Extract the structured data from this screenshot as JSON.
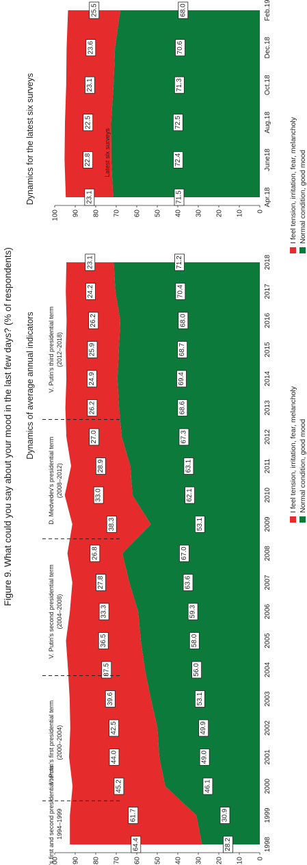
{
  "figure": {
    "title": "Figure 9. What could you say about your mood in the last few days? (% of respondents)",
    "colors": {
      "negative": "#e52b2b",
      "positive": "#0b7a3b"
    }
  },
  "legend": {
    "negative": "I feel tension, irritation, fear, melancholy",
    "positive": "Normal condition, good mood"
  },
  "chart_data": [
    {
      "type": "area",
      "subtitle": "Dynamics of average annual indicators",
      "x": [
        "1998",
        "1999",
        "2000",
        "2001",
        "2002",
        "2003",
        "2004",
        "2005",
        "2006",
        "2007",
        "2008",
        "2009",
        "2010",
        "2011",
        "2012",
        "2013",
        "2014",
        "2015",
        "2016",
        "2017",
        "2018"
      ],
      "ylim": [
        0,
        100
      ],
      "yticks": [
        0,
        10,
        20,
        30,
        40,
        50,
        60,
        70,
        80,
        90,
        100
      ],
      "series": [
        {
          "name": "Normal condition, good mood",
          "color": "#0b7a3b",
          "values": [
            28.2,
            30.9,
            46.1,
            49.0,
            49.9,
            53.1,
            56.0,
            58.0,
            59.3,
            63.6,
            67.0,
            53.1,
            62.1,
            63.1,
            67.3,
            68.6,
            69.4,
            68.7,
            68.0,
            70.4,
            71.2
          ]
        },
        {
          "name": "I feel tension, irritation, fear, melancholy",
          "color": "#e52b2b",
          "values": [
            64.4,
            61.7,
            45.2,
            44.0,
            42.5,
            39.6,
            37.5,
            36.5,
            33.3,
            27.8,
            26.8,
            38.3,
            33.0,
            28.9,
            27.0,
            26.2,
            24.9,
            25.9,
            26.2,
            24.2,
            23.1
          ]
        }
      ],
      "periods": [
        {
          "label": "Yeltsin's first and second presidential terms",
          "years": "1994–1999"
        },
        {
          "label": "V. Putin's first presidential term",
          "years": "(2000–2004)"
        },
        {
          "label": "V. Putin's second presidential term",
          "years": "(2004–2008)"
        },
        {
          "label": "D. Medvedev's presidential term",
          "years": "(2008–2012)"
        },
        {
          "label": "V. Putin's third presidential term",
          "years": "(2012–2018)"
        }
      ],
      "legend_position": "bottom"
    },
    {
      "type": "area",
      "subtitle": "Dynamics for the latest six surveys",
      "annotation": "Latest six surveys",
      "x": [
        "Apr.18",
        "June18",
        "Aug.18",
        "Oct.18",
        "Dec.18",
        "Feb.19"
      ],
      "ylim": [
        0,
        100
      ],
      "yticks": [
        0,
        10,
        20,
        30,
        40,
        50,
        60,
        70,
        80,
        90,
        100
      ],
      "series": [
        {
          "name": "Normal condition, good mood",
          "color": "#0b7a3b",
          "values": [
            71.5,
            72.4,
            72.5,
            71.3,
            70.6,
            68.0
          ]
        },
        {
          "name": "I feel tension, irritation, fear, melancholy",
          "color": "#e52b2b",
          "values": [
            23.1,
            22.8,
            22.5,
            23.1,
            23.6,
            25.5
          ]
        }
      ],
      "legend_position": "bottom"
    }
  ]
}
